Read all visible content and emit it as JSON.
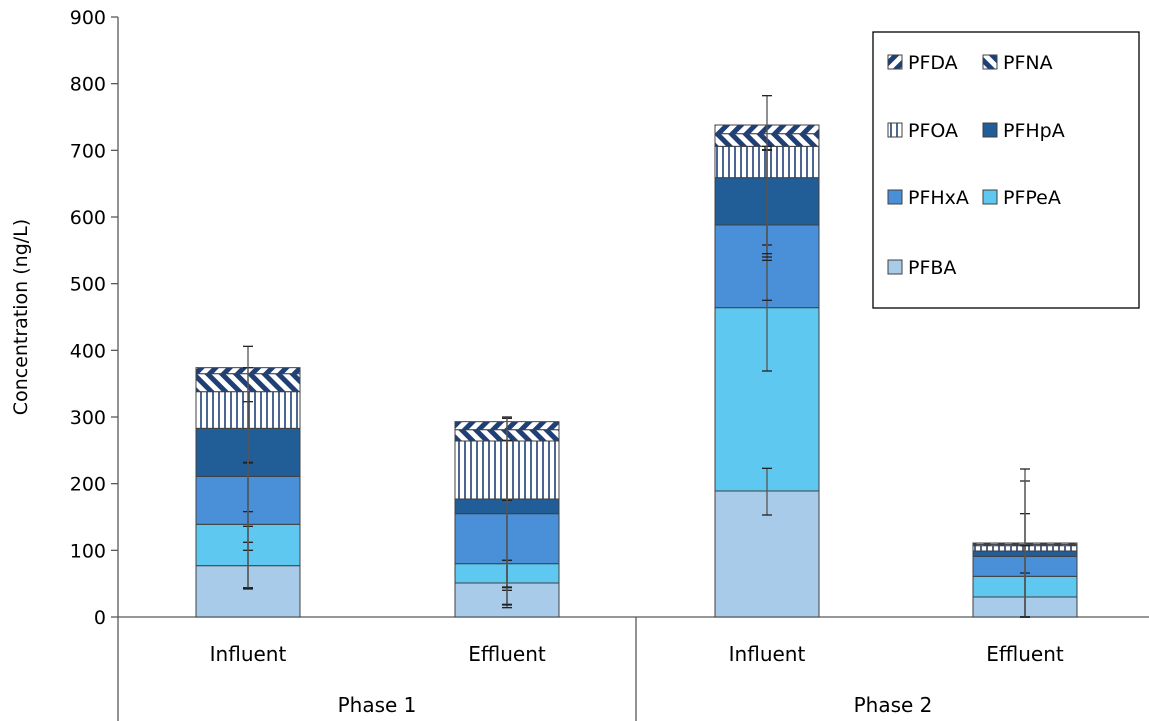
{
  "chart_data": {
    "type": "bar",
    "stacked": true,
    "ylabel": "Concentration (ng/L)",
    "ylim": [
      0,
      900
    ],
    "yticks": [
      0,
      100,
      200,
      300,
      400,
      500,
      600,
      700,
      800,
      900
    ],
    "grid": false,
    "legend_position": "top-right",
    "groups": [
      {
        "label": "Phase 1",
        "categories": [
          "Influent",
          "Effluent"
        ]
      },
      {
        "label": "Phase 2",
        "categories": [
          "Influent",
          "Effluent"
        ]
      }
    ],
    "categories": [
      "Influent",
      "Effluent",
      "Influent",
      "Effluent"
    ],
    "series": [
      {
        "name": "PFBA",
        "color": "#a9cbea",
        "pattern": "solid",
        "values": [
          77,
          51,
          189,
          30
        ]
      },
      {
        "name": "PFPeA",
        "color": "#5ec8f0",
        "pattern": "solid",
        "values": [
          62,
          29,
          275,
          31
        ]
      },
      {
        "name": "PFHxA",
        "color": "#4a90d8",
        "pattern": "solid",
        "values": [
          72,
          75,
          124,
          30
        ]
      },
      {
        "name": "PFHpA",
        "color": "#215d97",
        "pattern": "solid",
        "values": [
          72,
          22,
          71,
          8
        ]
      },
      {
        "name": "PFOA",
        "color": "#1f3f77",
        "pattern": "vertical",
        "values": [
          55,
          87,
          47,
          8
        ]
      },
      {
        "name": "PFNA",
        "color": "#1f3f77",
        "pattern": "diagonal-up",
        "values": [
          27,
          17,
          19,
          2
        ]
      },
      {
        "name": "PFDA",
        "color": "#1f3f77",
        "pattern": "diagonal-down",
        "values": [
          9,
          12,
          13,
          2
        ]
      }
    ],
    "error_bars": [
      [
        {
          "center": 77,
          "low": 42,
          "high": 112
        },
        {
          "center": 139,
          "low": 100,
          "high": 158
        },
        {
          "center": 211,
          "low": 136,
          "high": 232
        },
        {
          "center": 283,
          "low": 231,
          "high": 323
        },
        {
          "center": 338,
          "low": 44,
          "high": 374
        },
        {
          "center": 365,
          "low": 43,
          "high": 406
        }
      ],
      [
        {
          "center": 51,
          "low": 14,
          "high": 85
        },
        {
          "center": 80,
          "low": 40,
          "high": 85
        },
        {
          "center": 155,
          "low": 44,
          "high": 175
        },
        {
          "center": 177,
          "low": 18,
          "high": 265
        },
        {
          "center": 264,
          "low": 19,
          "high": 298
        },
        {
          "center": 281,
          "low": 45,
          "high": 300
        }
      ],
      [
        {
          "center": 189,
          "low": 153,
          "high": 223
        },
        {
          "center": 464,
          "low": 369,
          "high": 558
        },
        {
          "center": 588,
          "low": 475,
          "high": 701
        },
        {
          "center": 659,
          "low": 535,
          "high": 700
        },
        {
          "center": 706,
          "low": 540,
          "high": 706
        },
        {
          "center": 725,
          "low": 545,
          "high": 782
        }
      ],
      [
        {
          "center": 30,
          "low": 0,
          "high": 66
        },
        {
          "center": 61,
          "low": 0,
          "high": 155
        },
        {
          "center": 91,
          "low": 0,
          "high": 204
        },
        {
          "center": 99,
          "low": 0,
          "high": 222
        },
        {
          "center": 107,
          "low": 0,
          "high": 107
        }
      ]
    ],
    "legend_order": [
      "PFDA",
      "PFNA",
      "PFOA",
      "PFHpA",
      "PFHxA",
      "PFPeA",
      "PFBA"
    ]
  }
}
